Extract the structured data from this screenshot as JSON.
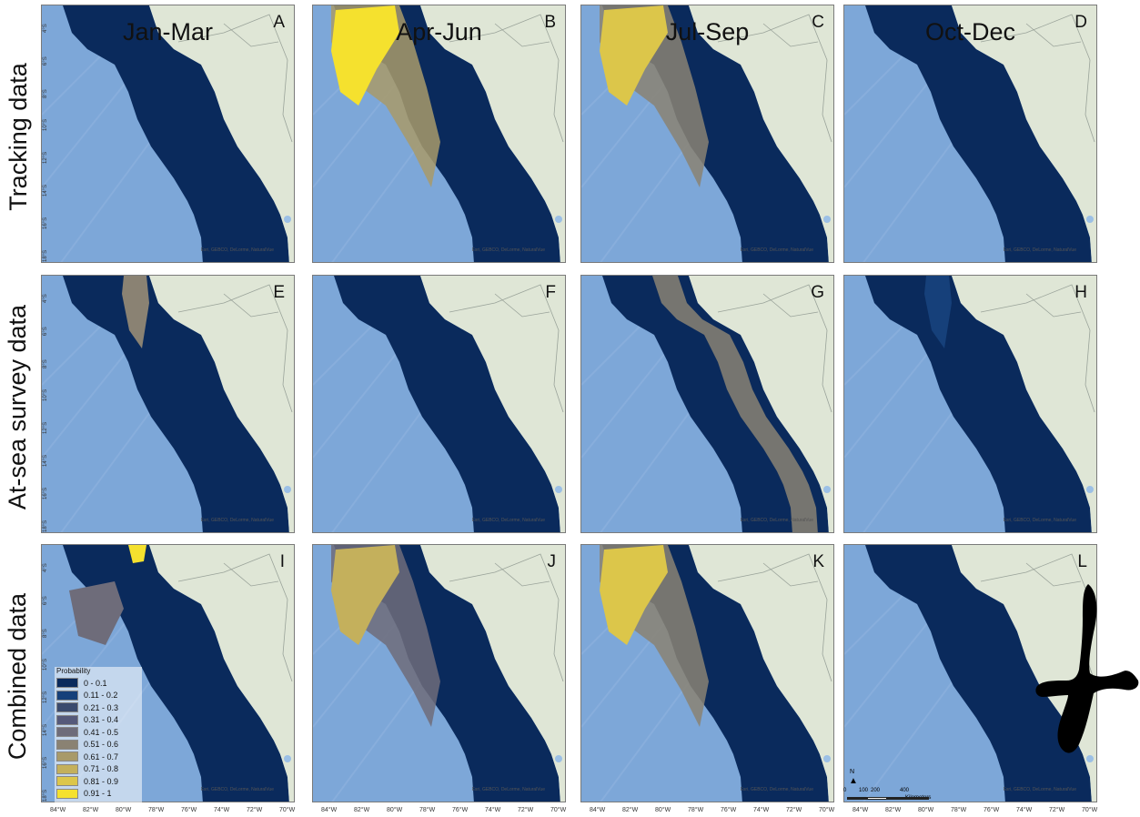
{
  "rows": [
    {
      "label": "Tracking data"
    },
    {
      "label": "At-sea survey data"
    },
    {
      "label": "Combined data"
    }
  ],
  "seasons": [
    "Jan-Mar",
    "Apr-Jun",
    "Jul-Sep",
    "Oct-Dec"
  ],
  "panels": [
    {
      "letter": "A",
      "probability_level": 0.05,
      "hotspot": "none"
    },
    {
      "letter": "B",
      "probability_level": 0.95,
      "hotspot": "north-wide"
    },
    {
      "letter": "C",
      "probability_level": 0.9,
      "hotspot": "north-wide"
    },
    {
      "letter": "D",
      "probability_level": 0.05,
      "hotspot": "none"
    },
    {
      "letter": "E",
      "probability_level": 0.6,
      "hotspot": "north-coast"
    },
    {
      "letter": "F",
      "probability_level": 0.05,
      "hotspot": "none"
    },
    {
      "letter": "G",
      "probability_level": 0.55,
      "hotspot": "coastal-band"
    },
    {
      "letter": "H",
      "probability_level": 0.15,
      "hotspot": "north-coast"
    },
    {
      "letter": "I",
      "probability_level": 0.45,
      "hotspot": "north-offshore"
    },
    {
      "letter": "J",
      "probability_level": 0.8,
      "hotspot": "north-wide"
    },
    {
      "letter": "K",
      "probability_level": 0.85,
      "hotspot": "north-wide"
    },
    {
      "letter": "L",
      "probability_level": 0.1,
      "hotspot": "north-coast"
    }
  ],
  "attribution": "Esri, GEBCO, DeLorme, NaturalVue",
  "lat_ticks": [
    "4°S",
    "6°S",
    "8°S",
    "10°S",
    "12°S",
    "14°S",
    "16°S",
    "18°S"
  ],
  "lon_ticks": [
    "84°W",
    "82°W",
    "80°W",
    "78°W",
    "76°W",
    "74°W",
    "72°W",
    "70°W"
  ],
  "legend": {
    "title": "Probability",
    "items": [
      {
        "label": "0 - 0.1",
        "color": "#0a2a5c"
      },
      {
        "label": "0.11 - 0.2",
        "color": "#16407a"
      },
      {
        "label": "0.21 - 0.3",
        "color": "#3a4a6e"
      },
      {
        "label": "0.31 - 0.4",
        "color": "#55597a"
      },
      {
        "label": "0.41 - 0.5",
        "color": "#6e6c7a"
      },
      {
        "label": "0.51 - 0.6",
        "color": "#8a8273"
      },
      {
        "label": "0.61 - 0.7",
        "color": "#a89a6a"
      },
      {
        "label": "0.71 - 0.8",
        "color": "#c4b05c"
      },
      {
        "label": "0.81 - 0.9",
        "color": "#dcc64a"
      },
      {
        "label": "0.91 - 1",
        "color": "#f5e12e"
      }
    ]
  },
  "scale": {
    "north": "N",
    "ticks": [
      "0",
      "100",
      "200",
      "400"
    ],
    "units": "Kilometers"
  },
  "colors": {
    "ocean": "#7da7d8",
    "land": "#dfe6d6",
    "model": "#0a2a5c"
  }
}
